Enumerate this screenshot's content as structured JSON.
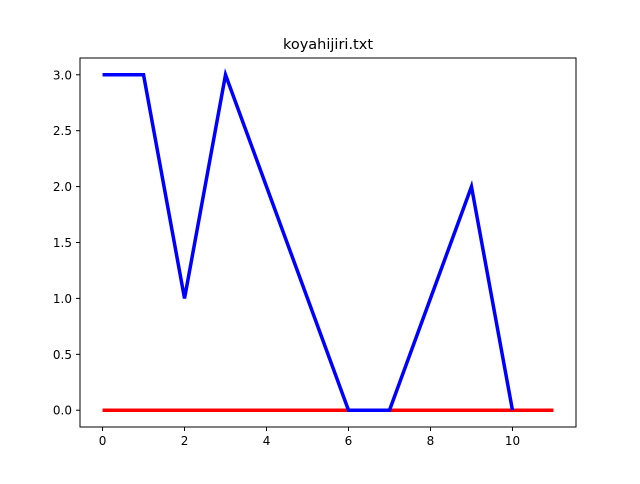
{
  "chart_data": {
    "type": "line",
    "title": "koyahijiri.txt",
    "xlabel": "",
    "ylabel": "",
    "xlim": [
      -0.55,
      11.55
    ],
    "ylim": [
      -0.15,
      3.15
    ],
    "x_ticks": [
      0,
      2,
      4,
      6,
      8,
      10
    ],
    "y_ticks": [
      0.0,
      0.5,
      1.0,
      1.5,
      2.0,
      2.5,
      3.0
    ],
    "x_tick_labels": [
      "0",
      "2",
      "4",
      "6",
      "8",
      "10"
    ],
    "y_tick_labels": [
      "0.0",
      "0.5",
      "1.0",
      "1.5",
      "2.0",
      "2.5",
      "3.0"
    ],
    "grid": false,
    "legend": "none",
    "series": [
      {
        "color": "#ff0000",
        "x": [
          0,
          1,
          2,
          3,
          4,
          5,
          6,
          7,
          8,
          9,
          10,
          11
        ],
        "values": [
          0,
          0,
          0,
          0,
          0,
          0,
          0,
          0,
          0,
          0,
          0,
          0
        ]
      },
      {
        "color": "#0000ff",
        "x": [
          0,
          1,
          2,
          3,
          4,
          5,
          6,
          7,
          8,
          9,
          10
        ],
        "values": [
          3,
          3,
          1,
          3,
          2,
          1,
          0,
          0,
          1,
          2,
          0
        ]
      }
    ]
  }
}
